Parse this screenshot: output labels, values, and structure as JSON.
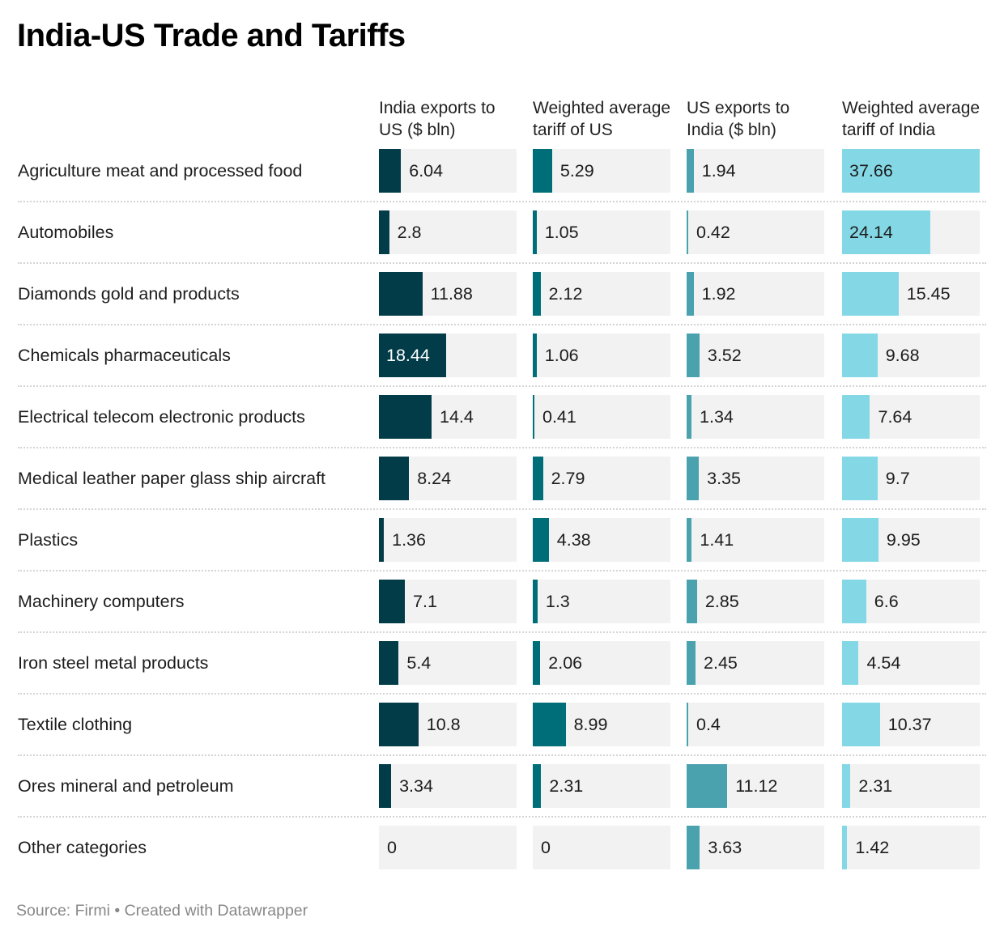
{
  "chart_data": {
    "type": "table",
    "title": "India-US Trade and Tariffs",
    "columns": [
      {
        "name": "India exports to US ($ bln)",
        "color": "#023c48"
      },
      {
        "name": "Weighted average tariff of US",
        "color": "#006e78"
      },
      {
        "name": "US exports to India ($ bln)",
        "color": "#4aa2ae"
      },
      {
        "name": "Weighted average tariff of India",
        "color": "#84d8e6"
      }
    ],
    "scale_max": 37.66,
    "rows": [
      {
        "category": "Agriculture meat and processed food",
        "values": [
          6.04,
          5.29,
          1.94,
          37.66
        ]
      },
      {
        "category": "Automobiles",
        "values": [
          2.8,
          1.05,
          0.42,
          24.14
        ]
      },
      {
        "category": "Diamonds gold and products",
        "values": [
          11.88,
          2.12,
          1.92,
          15.45
        ]
      },
      {
        "category": "Chemicals pharmaceuticals",
        "values": [
          18.44,
          1.06,
          3.52,
          9.68
        ]
      },
      {
        "category": "Electrical telecom electronic products",
        "values": [
          14.4,
          0.41,
          1.34,
          7.64
        ]
      },
      {
        "category": "Medical leather paper glass ship aircraft",
        "values": [
          8.24,
          2.79,
          3.35,
          9.7
        ]
      },
      {
        "category": "Plastics",
        "values": [
          1.36,
          4.38,
          1.41,
          9.95
        ]
      },
      {
        "category": "Machinery computers",
        "values": [
          7.1,
          1.3,
          2.85,
          6.6
        ]
      },
      {
        "category": "Iron steel metal products",
        "values": [
          5.4,
          2.06,
          2.45,
          4.54
        ]
      },
      {
        "category": "Textile clothing",
        "values": [
          10.8,
          8.99,
          0.4,
          10.37
        ]
      },
      {
        "category": "Ores mineral and petroleum",
        "values": [
          3.34,
          2.31,
          11.12,
          2.31
        ]
      },
      {
        "category": "Other categories",
        "values": [
          0,
          0,
          3.63,
          1.42
        ]
      }
    ]
  },
  "footer": {
    "source": "Source: Firmi • Created with Datawrapper"
  }
}
